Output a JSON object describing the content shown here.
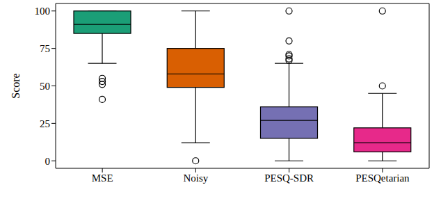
{
  "chart_data": {
    "type": "box",
    "y_label": "Score",
    "categories": [
      "MSE",
      "Noisy",
      "PESQ-SDR",
      "PESQetarian"
    ],
    "min": [
      65,
      12,
      0,
      0
    ],
    "q1": [
      85,
      49,
      15,
      6
    ],
    "median": [
      91,
      58,
      27,
      12
    ],
    "q3": [
      100,
      75,
      36,
      22
    ],
    "max": [
      100,
      100,
      65,
      45
    ],
    "outliers": [
      [
        55,
        53,
        51,
        41
      ],
      [
        0
      ],
      [
        67,
        68,
        70,
        71,
        80,
        100
      ],
      [
        50,
        100
      ]
    ],
    "colors": [
      "#1b9e77",
      "#d95f02",
      "#7570b3",
      "#e7298a"
    ],
    "ylim": [
      -5,
      105
    ],
    "yticks": [
      0,
      25,
      50,
      75,
      100
    ],
    "grid": false
  }
}
